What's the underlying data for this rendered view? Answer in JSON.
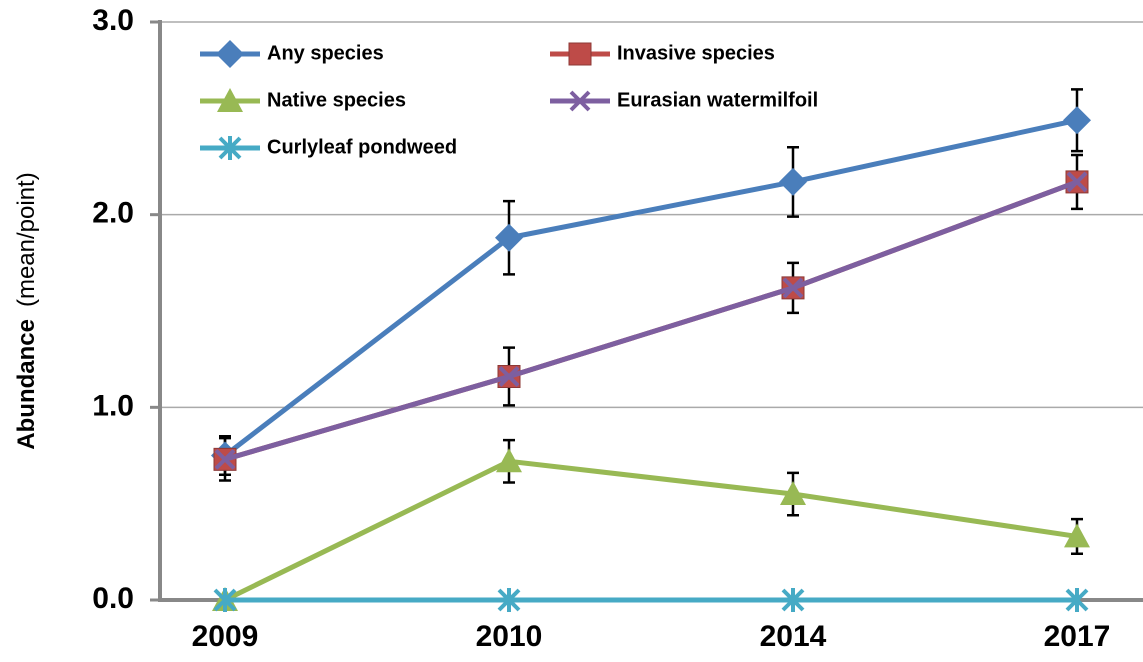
{
  "chart_data": {
    "type": "line",
    "y_label": "Abundance",
    "y_label_unit": "(mean/point)",
    "categories": [
      "2009",
      "2010",
      "2014",
      "2017"
    ],
    "ylim": [
      0,
      3
    ],
    "yticks": [
      {
        "value": 0,
        "label": "0.0"
      },
      {
        "value": 1,
        "label": "1.0"
      },
      {
        "value": 2,
        "label": "2.0"
      },
      {
        "value": 3,
        "label": "3.0"
      }
    ],
    "grid": true,
    "series": [
      {
        "name": "Any species",
        "color": "#4a7ebb",
        "marker": "diamond",
        "values": [
          0.75,
          1.88,
          2.17,
          2.49
        ],
        "errors": [
          0.1,
          0.19,
          0.18,
          0.16
        ]
      },
      {
        "name": "Invasive species",
        "color": "#be4b48",
        "marker": "square",
        "values": [
          0.73,
          1.16,
          1.62,
          2.17
        ],
        "errors": [
          0.11,
          0.15,
          0.13,
          0.14
        ]
      },
      {
        "name": "Native species",
        "color": "#98b954",
        "marker": "triangle",
        "values": [
          0,
          0.72,
          0.55,
          0.33
        ],
        "errors": [
          null,
          0.11,
          0.11,
          0.09
        ]
      },
      {
        "name": "Eurasian watermilfoil",
        "color": "#7d5fa0",
        "marker": "x",
        "values": [
          0.73,
          1.16,
          1.62,
          2.17
        ]
      },
      {
        "name": "Curlyleaf pondweed",
        "color": "#46aac5",
        "marker": "star",
        "values": [
          0,
          0,
          0,
          0
        ]
      }
    ]
  }
}
